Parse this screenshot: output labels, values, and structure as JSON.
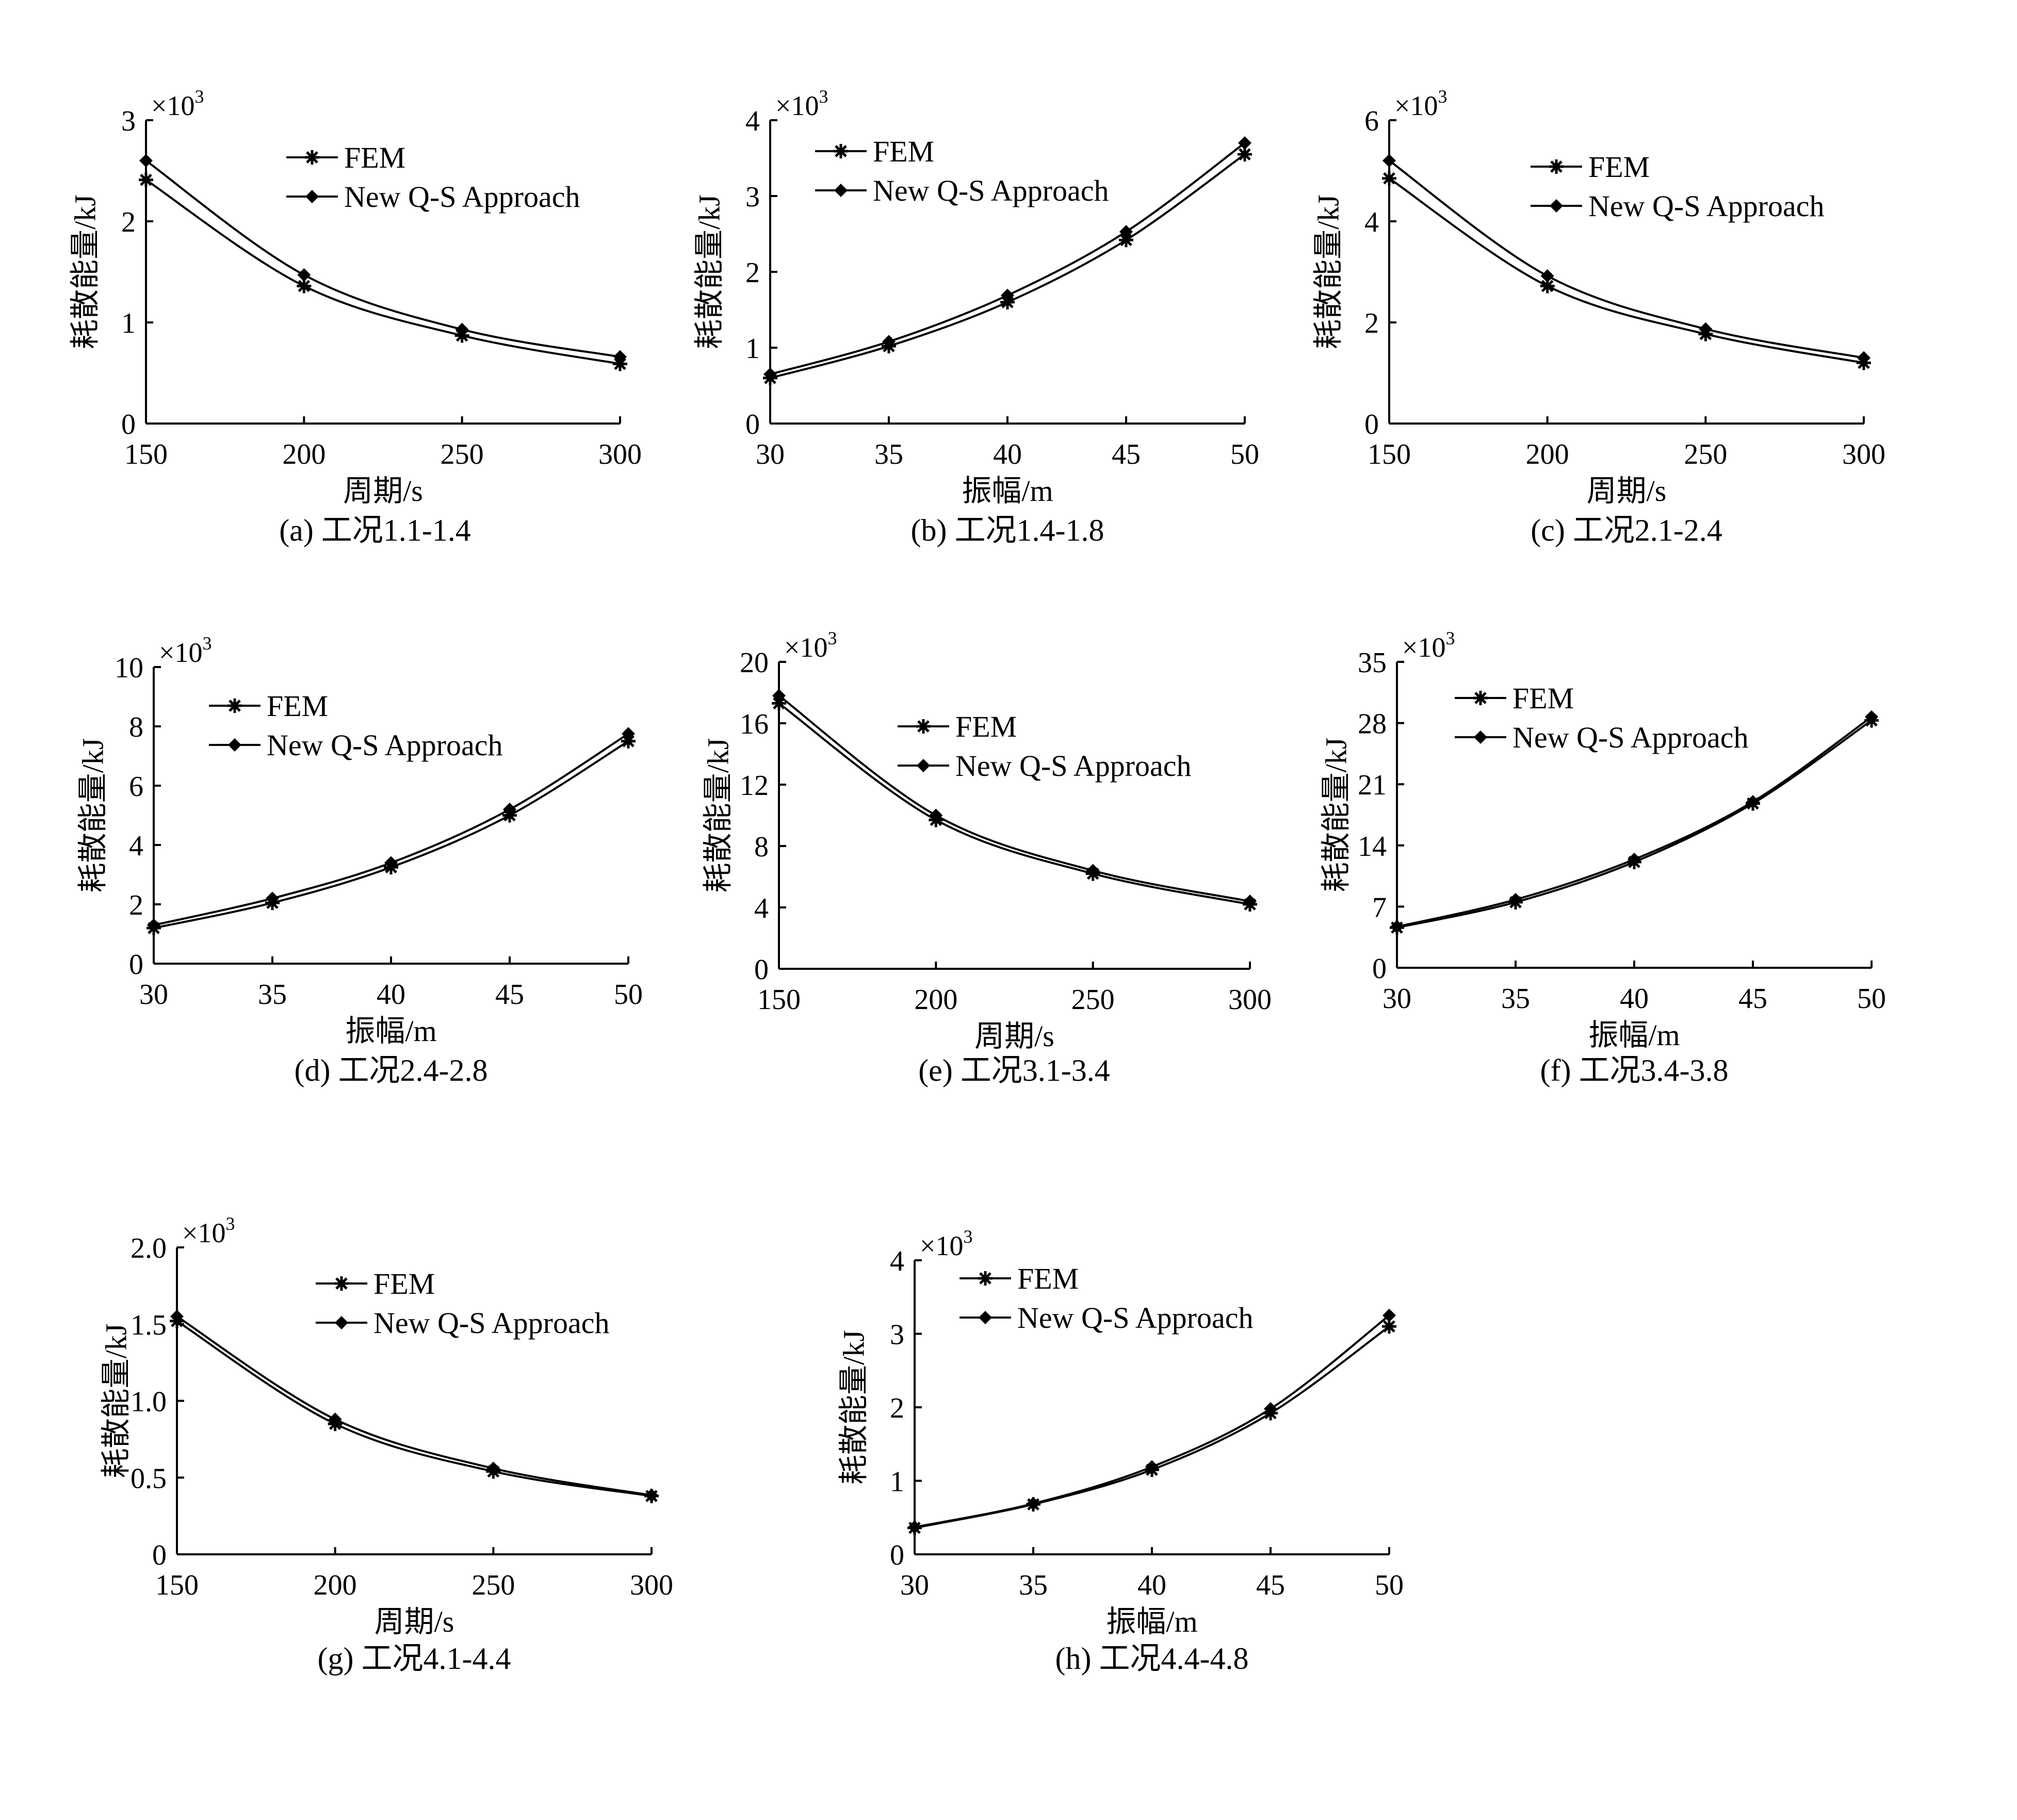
{
  "figure": {
    "y_label": "耗散能量/kJ",
    "multiplier": "×10",
    "multiplier_exp": "3",
    "line_color": "#000000",
    "background": "#ffffff"
  },
  "chart_data": [
    {
      "id": "a",
      "type": "line",
      "caption": "(a) 工况1.1-1.4",
      "xlabel": "周期/s",
      "ylabel": "耗散能量/kJ",
      "y_multiplier": "×10^3",
      "x": [
        150,
        200,
        250,
        300
      ],
      "xticks": [
        150,
        200,
        250,
        300
      ],
      "ylim": [
        0,
        3
      ],
      "yticks": [
        0,
        1,
        2,
        3
      ],
      "ytick_labels": [
        "0",
        "1",
        "2",
        "3"
      ],
      "legend_position": "top-right",
      "series": [
        {
          "name": "FEM",
          "marker": "star",
          "values": [
            2.41,
            1.36,
            0.87,
            0.59
          ]
        },
        {
          "name": "New Q-S Approach",
          "marker": "diamond",
          "values": [
            2.6,
            1.47,
            0.93,
            0.66
          ]
        }
      ]
    },
    {
      "id": "b",
      "type": "line",
      "caption": "(b) 工况1.4-1.8",
      "xlabel": "振幅/m",
      "ylabel": "耗散能量/kJ",
      "y_multiplier": "×10^3",
      "x": [
        30,
        35,
        40,
        45,
        50
      ],
      "xticks": [
        30,
        35,
        40,
        45,
        50
      ],
      "ylim": [
        0,
        4
      ],
      "yticks": [
        0,
        1,
        2,
        3,
        4
      ],
      "ytick_labels": [
        "0",
        "1",
        "2",
        "3",
        "4"
      ],
      "legend_position": "top-left",
      "series": [
        {
          "name": "FEM",
          "marker": "star",
          "values": [
            0.6,
            1.02,
            1.6,
            2.42,
            3.55
          ]
        },
        {
          "name": "New Q-S Approach",
          "marker": "diamond",
          "values": [
            0.65,
            1.08,
            1.69,
            2.53,
            3.7
          ]
        }
      ]
    },
    {
      "id": "c",
      "type": "line",
      "caption": "(c) 工况2.1-2.4",
      "xlabel": "周期/s",
      "ylabel": "耗散能量/kJ",
      "y_multiplier": "×10^3",
      "x": [
        150,
        200,
        250,
        300
      ],
      "xticks": [
        150,
        200,
        250,
        300
      ],
      "ylim": [
        0,
        6
      ],
      "yticks": [
        0,
        2,
        4,
        6
      ],
      "ytick_labels": [
        "0",
        "2",
        "4",
        "6"
      ],
      "legend_position": "top-right",
      "series": [
        {
          "name": "FEM",
          "marker": "star",
          "values": [
            4.85,
            2.72,
            1.77,
            1.2
          ]
        },
        {
          "name": "New Q-S Approach",
          "marker": "diamond",
          "values": [
            5.2,
            2.92,
            1.87,
            1.3
          ]
        }
      ]
    },
    {
      "id": "d",
      "type": "line",
      "caption": "(d) 工况2.4-2.8",
      "xlabel": "振幅/m",
      "ylabel": "耗散能量/kJ",
      "y_multiplier": "×10^3",
      "x": [
        30,
        35,
        40,
        45,
        50
      ],
      "xticks": [
        30,
        35,
        40,
        45,
        50
      ],
      "ylim": [
        0,
        10
      ],
      "yticks": [
        0,
        2,
        4,
        6,
        8,
        10
      ],
      "ytick_labels": [
        "0",
        "2",
        "4",
        "6",
        "8",
        "10"
      ],
      "legend_position": "top-left",
      "series": [
        {
          "name": "FEM",
          "marker": "star",
          "values": [
            1.2,
            2.05,
            3.25,
            5.0,
            7.5
          ]
        },
        {
          "name": "New Q-S Approach",
          "marker": "diamond",
          "values": [
            1.3,
            2.2,
            3.4,
            5.2,
            7.75
          ]
        }
      ]
    },
    {
      "id": "e",
      "type": "line",
      "caption": "(e) 工况3.1-3.4",
      "xlabel": "周期/s",
      "ylabel": "耗散能量/kJ",
      "y_multiplier": "×10^3",
      "x": [
        150,
        200,
        250,
        300
      ],
      "xticks": [
        150,
        200,
        250,
        300
      ],
      "ylim": [
        0,
        20
      ],
      "yticks": [
        0,
        4,
        8,
        12,
        16,
        20
      ],
      "ytick_labels": [
        "0",
        "4",
        "8",
        "12",
        "16",
        "20"
      ],
      "legend_position": "center-right",
      "series": [
        {
          "name": "FEM",
          "marker": "star",
          "values": [
            17.3,
            9.7,
            6.2,
            4.2
          ]
        },
        {
          "name": "New Q-S Approach",
          "marker": "diamond",
          "values": [
            17.8,
            10.0,
            6.4,
            4.4
          ]
        }
      ]
    },
    {
      "id": "f",
      "type": "line",
      "caption": "(f) 工况3.4-3.8",
      "xlabel": "振幅/m",
      "ylabel": "耗散能量/kJ",
      "y_multiplier": "×10^3",
      "x": [
        30,
        35,
        40,
        45,
        50
      ],
      "xticks": [
        30,
        35,
        40,
        45,
        50
      ],
      "ylim": [
        0,
        35
      ],
      "yticks": [
        0,
        7,
        14,
        21,
        28,
        35
      ],
      "ytick_labels": [
        "0",
        "7",
        "14",
        "21",
        "28",
        "35"
      ],
      "legend_position": "top-left",
      "series": [
        {
          "name": "FEM",
          "marker": "star",
          "values": [
            4.6,
            7.5,
            12.1,
            18.8,
            28.3
          ]
        },
        {
          "name": "New Q-S Approach",
          "marker": "diamond",
          "values": [
            4.7,
            7.8,
            12.4,
            19.0,
            28.7
          ]
        }
      ]
    },
    {
      "id": "g",
      "type": "line",
      "caption": "(g) 工况4.1-4.4",
      "xlabel": "周期/s",
      "ylabel": "耗散能量/kJ",
      "y_multiplier": "×10^3",
      "x": [
        150,
        200,
        250,
        300
      ],
      "xticks": [
        150,
        200,
        250,
        300
      ],
      "ylim": [
        0,
        2
      ],
      "yticks": [
        0,
        0.5,
        1,
        1.5,
        2
      ],
      "ytick_labels": [
        "0",
        "0.5",
        "1.0",
        "1.5",
        "2.0"
      ],
      "legend_position": "top-right",
      "series": [
        {
          "name": "FEM",
          "marker": "star",
          "values": [
            1.52,
            0.85,
            0.54,
            0.38
          ]
        },
        {
          "name": "New Q-S Approach",
          "marker": "diamond",
          "values": [
            1.55,
            0.88,
            0.56,
            0.385
          ]
        }
      ]
    },
    {
      "id": "h",
      "type": "line",
      "caption": "(h) 工况4.4-4.8",
      "xlabel": "振幅/m",
      "ylabel": "耗散能量/kJ",
      "y_multiplier": "×10^3",
      "x": [
        30,
        35,
        40,
        45,
        50
      ],
      "xticks": [
        30,
        35,
        40,
        45,
        50
      ],
      "ylim": [
        0,
        4
      ],
      "yticks": [
        0,
        1,
        2,
        3,
        4
      ],
      "ytick_labels": [
        "0",
        "1",
        "2",
        "3",
        "4"
      ],
      "legend_position": "top-left",
      "series": [
        {
          "name": "FEM",
          "marker": "star",
          "values": [
            0.36,
            0.68,
            1.15,
            1.92,
            3.1
          ]
        },
        {
          "name": "New Q-S Approach",
          "marker": "diamond",
          "values": [
            0.37,
            0.69,
            1.19,
            1.98,
            3.25
          ]
        }
      ]
    }
  ]
}
